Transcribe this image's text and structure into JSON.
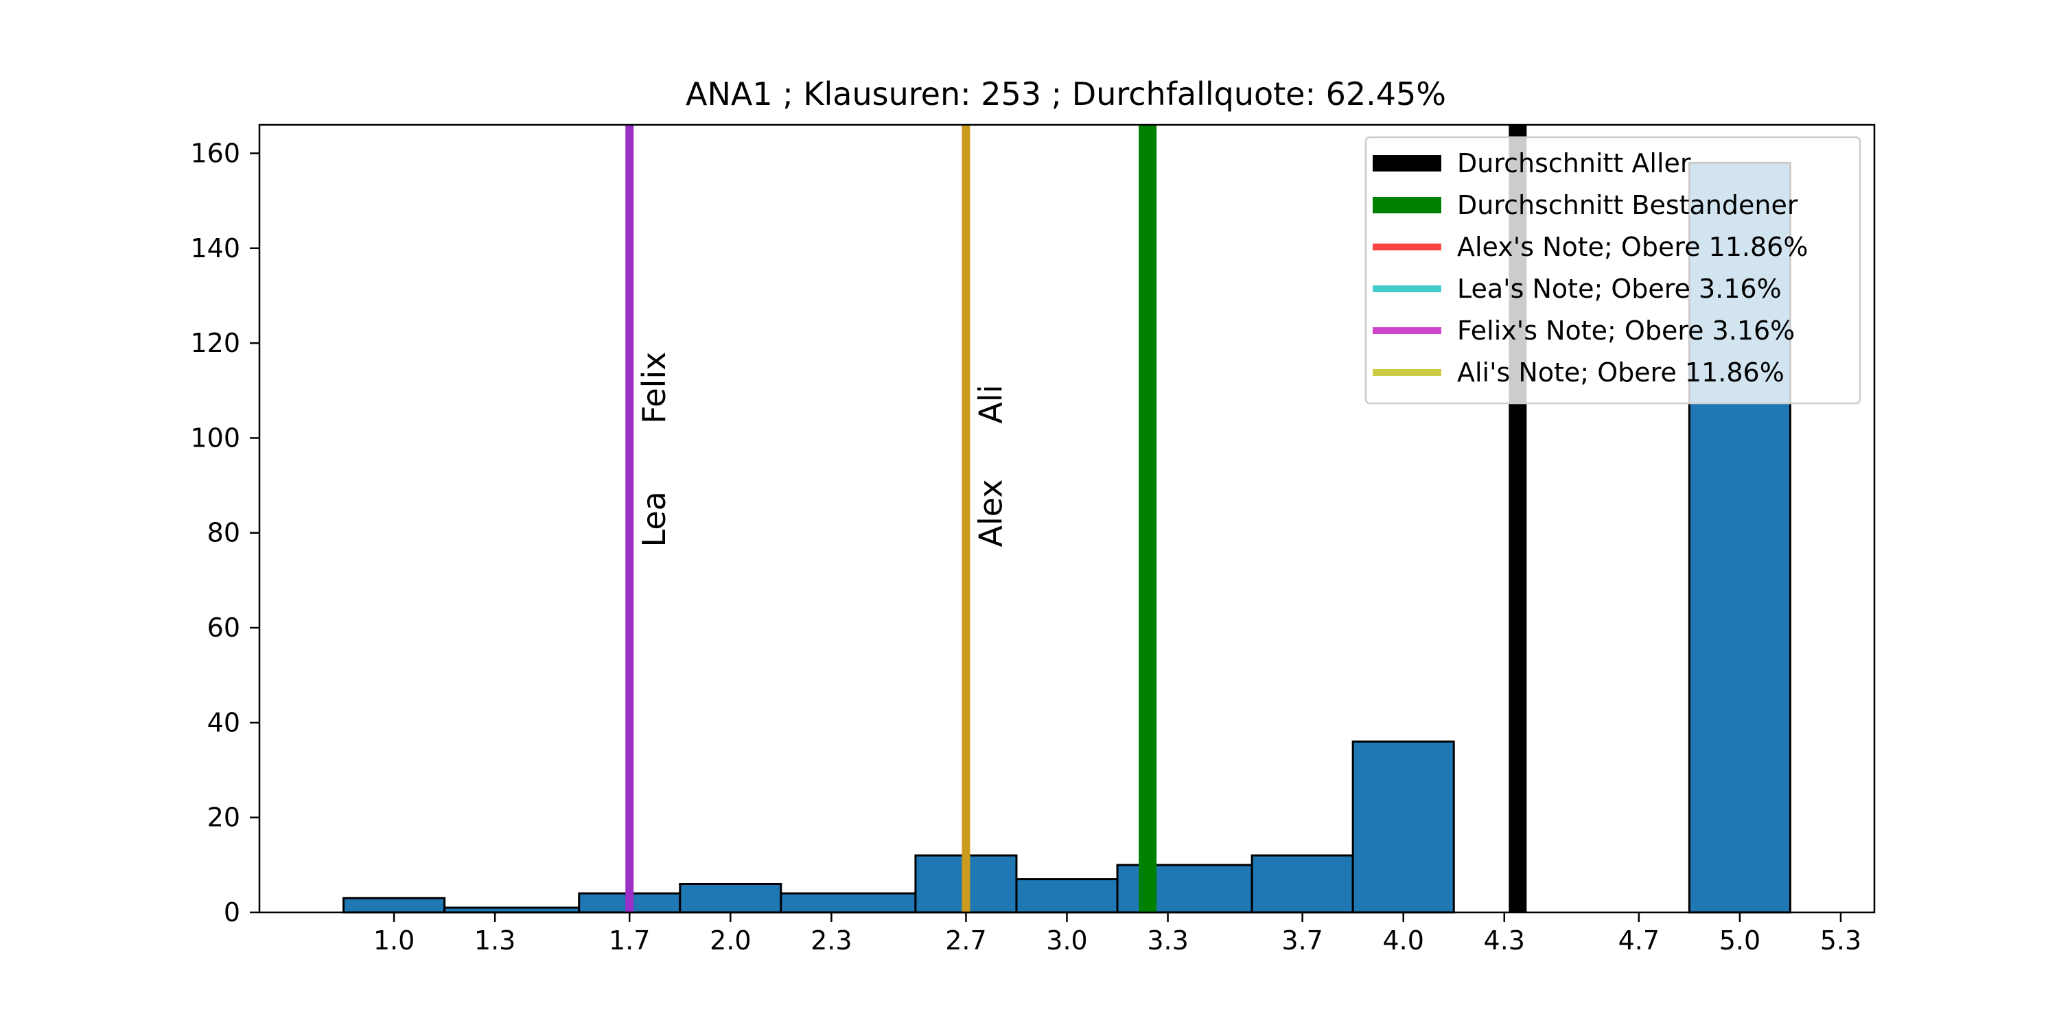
{
  "chart_data": {
    "type": "bar",
    "title": "ANA1 ; Klausuren: 253 ; Durchfallquote: 62.45%",
    "xlabel": "",
    "ylabel": "",
    "xlim": [
      0.6,
      5.4
    ],
    "ylim": [
      0,
      166
    ],
    "xticks": [
      1.0,
      1.3,
      1.7,
      2.0,
      2.3,
      2.7,
      3.0,
      3.3,
      3.7,
      4.0,
      4.3,
      4.7,
      5.0,
      5.3
    ],
    "xtick_labels": [
      "1.0",
      "1.3",
      "1.7",
      "2.0",
      "2.3",
      "2.7",
      "3.0",
      "3.3",
      "3.7",
      "4.0",
      "4.3",
      "4.7",
      "5.0",
      "5.3"
    ],
    "yticks": [
      0,
      20,
      40,
      60,
      80,
      100,
      120,
      140,
      160
    ],
    "ytick_labels": [
      "0",
      "20",
      "40",
      "60",
      "80",
      "100",
      "120",
      "140",
      "160"
    ],
    "bar_color": "#1f77b4",
    "bins": [
      {
        "x0": 0.85,
        "x1": 1.15,
        "value": 3
      },
      {
        "x0": 1.15,
        "x1": 1.55,
        "value": 1
      },
      {
        "x0": 1.55,
        "x1": 1.85,
        "value": 4
      },
      {
        "x0": 1.85,
        "x1": 2.15,
        "value": 6
      },
      {
        "x0": 2.15,
        "x1": 2.55,
        "value": 4
      },
      {
        "x0": 2.55,
        "x1": 2.85,
        "value": 12
      },
      {
        "x0": 2.85,
        "x1": 3.15,
        "value": 7
      },
      {
        "x0": 3.15,
        "x1": 3.55,
        "value": 10
      },
      {
        "x0": 3.55,
        "x1": 3.85,
        "value": 12
      },
      {
        "x0": 3.85,
        "x1": 4.15,
        "value": 36
      },
      {
        "x0": 4.15,
        "x1": 4.55,
        "value": 0
      },
      {
        "x0": 4.55,
        "x1": 4.85,
        "value": 0
      },
      {
        "x0": 4.85,
        "x1": 5.15,
        "value": 158
      }
    ],
    "vlines": [
      {
        "x": 4.34,
        "color": "#000000",
        "width": 26
      },
      {
        "x": 3.24,
        "color": "#008000",
        "width": 26
      },
      {
        "x": 2.7,
        "color": "#ff4444",
        "width": 10
      },
      {
        "x": 1.7,
        "color": "#44cccc",
        "width": 10
      },
      {
        "x": 1.7,
        "color": "#9b30c8",
        "width": 12
      },
      {
        "x": 2.7,
        "color": "#cc9a1c",
        "width": 12
      }
    ],
    "markers": [
      {
        "name": "Felix",
        "x": 1.7,
        "y": 103
      },
      {
        "name": "Lea",
        "x": 1.7,
        "y": 77
      },
      {
        "name": "Ali",
        "x": 2.7,
        "y": 103
      },
      {
        "name": "Alex",
        "x": 2.7,
        "y": 77
      }
    ],
    "legend": {
      "placement": "top-right",
      "entries": [
        {
          "label": "Durchschnitt Aller",
          "color": "#000000",
          "thickness": "thick"
        },
        {
          "label": "Durchschnitt Bestandener",
          "color": "#008000",
          "thickness": "thick"
        },
        {
          "label": "Alex's Note; Obere 11.86%",
          "color": "#ff4444",
          "thickness": "thin"
        },
        {
          "label": "Lea's Note; Obere 3.16%",
          "color": "#44cccc",
          "thickness": "thin"
        },
        {
          "label": "Felix's Note; Obere 3.16%",
          "color": "#cc44cc",
          "thickness": "thin"
        },
        {
          "label": "Ali's Note; Obere 11.86%",
          "color": "#cccc44",
          "thickness": "thin"
        }
      ]
    }
  }
}
